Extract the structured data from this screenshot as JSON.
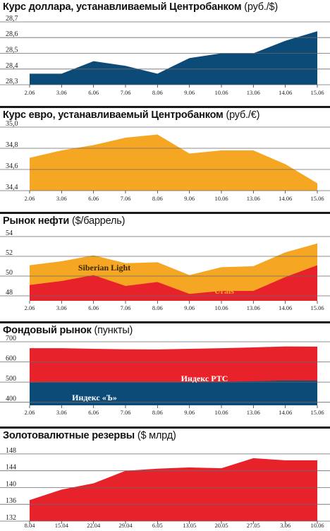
{
  "chart_data": [
    {
      "type": "area",
      "title": "Курс доллара, устанавливаемый Центробанком",
      "unit": "(руб./$)",
      "categories": [
        "2.06",
        "3.06",
        "6.06",
        "7.06",
        "8.06",
        "9.06",
        "10.06",
        "13.06",
        "14.06",
        "15.06"
      ],
      "series": [
        {
          "values": [
            28.37,
            28.37,
            28.45,
            28.42,
            28.37,
            28.47,
            28.5,
            28.5,
            28.58,
            28.64
          ]
        }
      ],
      "yticks": [
        "28,7",
        "28,6",
        "28,5",
        "28,4",
        "28,3"
      ],
      "ytick_values": [
        28.7,
        28.6,
        28.5,
        28.4,
        28.3
      ],
      "ylim": [
        28.3,
        28.7
      ],
      "colors": [
        "#0c4a78"
      ]
    },
    {
      "type": "area",
      "title": "Курс евро, устанавливаемый Центробанком",
      "unit": "(руб./€)",
      "categories": [
        "2.06",
        "3.06",
        "6.06",
        "7.06",
        "8.06",
        "9.06",
        "10.06",
        "13.06",
        "14.06",
        "15.06"
      ],
      "series": [
        {
          "values": [
            34.71,
            34.78,
            34.83,
            34.9,
            34.93,
            34.75,
            34.78,
            34.78,
            34.65,
            34.47
          ]
        }
      ],
      "yticks": [
        "35,0",
        "34,8",
        "34,6",
        "34,4"
      ],
      "ytick_values": [
        35.0,
        34.8,
        34.6,
        34.4
      ],
      "ylim": [
        34.4,
        35.0
      ],
      "colors": [
        "#f5a623"
      ]
    },
    {
      "type": "area",
      "title": "Рынок нефти",
      "unit": "($/баррель)",
      "categories": [
        "2.06",
        "3.06",
        "6.06",
        "7.06",
        "8.06",
        "9.06",
        "10.06",
        "13.06",
        "14.06",
        "15.06"
      ],
      "series": [
        {
          "name": "Siberian Light",
          "values": [
            51.1,
            51.5,
            52.1,
            51.3,
            51.4,
            50.1,
            50.9,
            51.0,
            52.4,
            53.3
          ]
        },
        {
          "name": "Urals",
          "values": [
            49.1,
            49.5,
            50.1,
            49.0,
            49.4,
            48.2,
            48.5,
            48.5,
            49.9,
            51.1
          ]
        }
      ],
      "yticks": [
        "54",
        "52",
        "50",
        "48"
      ],
      "ytick_values": [
        54,
        52,
        50,
        48
      ],
      "ylim": [
        47.5,
        54
      ],
      "colors": [
        "#f5a623",
        "#e8222b"
      ]
    },
    {
      "type": "area",
      "title": "Фондовый рынок",
      "unit": "(пункты)",
      "categories": [
        "2.06",
        "3.06",
        "6.06",
        "7.06",
        "8.06",
        "9.06",
        "10.06",
        "13.06",
        "14.06",
        "15.06"
      ],
      "series": [
        {
          "name": "Индекс РТС",
          "values": [
            668,
            668,
            665,
            663,
            662,
            665,
            668,
            672,
            677,
            676
          ]
        },
        {
          "name": "Индекс «Ъ»",
          "values": [
            498,
            500,
            500,
            500,
            500,
            500,
            502,
            504,
            508,
            507
          ]
        }
      ],
      "yticks": [
        "700",
        "600",
        "500",
        "400"
      ],
      "ytick_values": [
        700,
        600,
        500,
        400
      ],
      "ylim": [
        385,
        700
      ],
      "colors": [
        "#e8222b",
        "#0c4a78"
      ]
    },
    {
      "type": "area",
      "title": "Золотовалютные резервы",
      "unit": "($ млрд)",
      "categories": [
        "8.04",
        "15.04",
        "22.04",
        "29.04",
        "6.05",
        "13.05",
        "20.05",
        "27.05",
        "3.06",
        "10.06"
      ],
      "series": [
        {
          "values": [
            137,
            139.5,
            141,
            144,
            144.5,
            144.8,
            144.6,
            147,
            146.5,
            146.5
          ]
        }
      ],
      "yticks": [
        "148",
        "144",
        "140",
        "136",
        "132"
      ],
      "ytick_values": [
        148,
        144,
        140,
        136,
        132
      ],
      "ylim": [
        132,
        149
      ],
      "colors": [
        "#e8222b"
      ]
    }
  ]
}
